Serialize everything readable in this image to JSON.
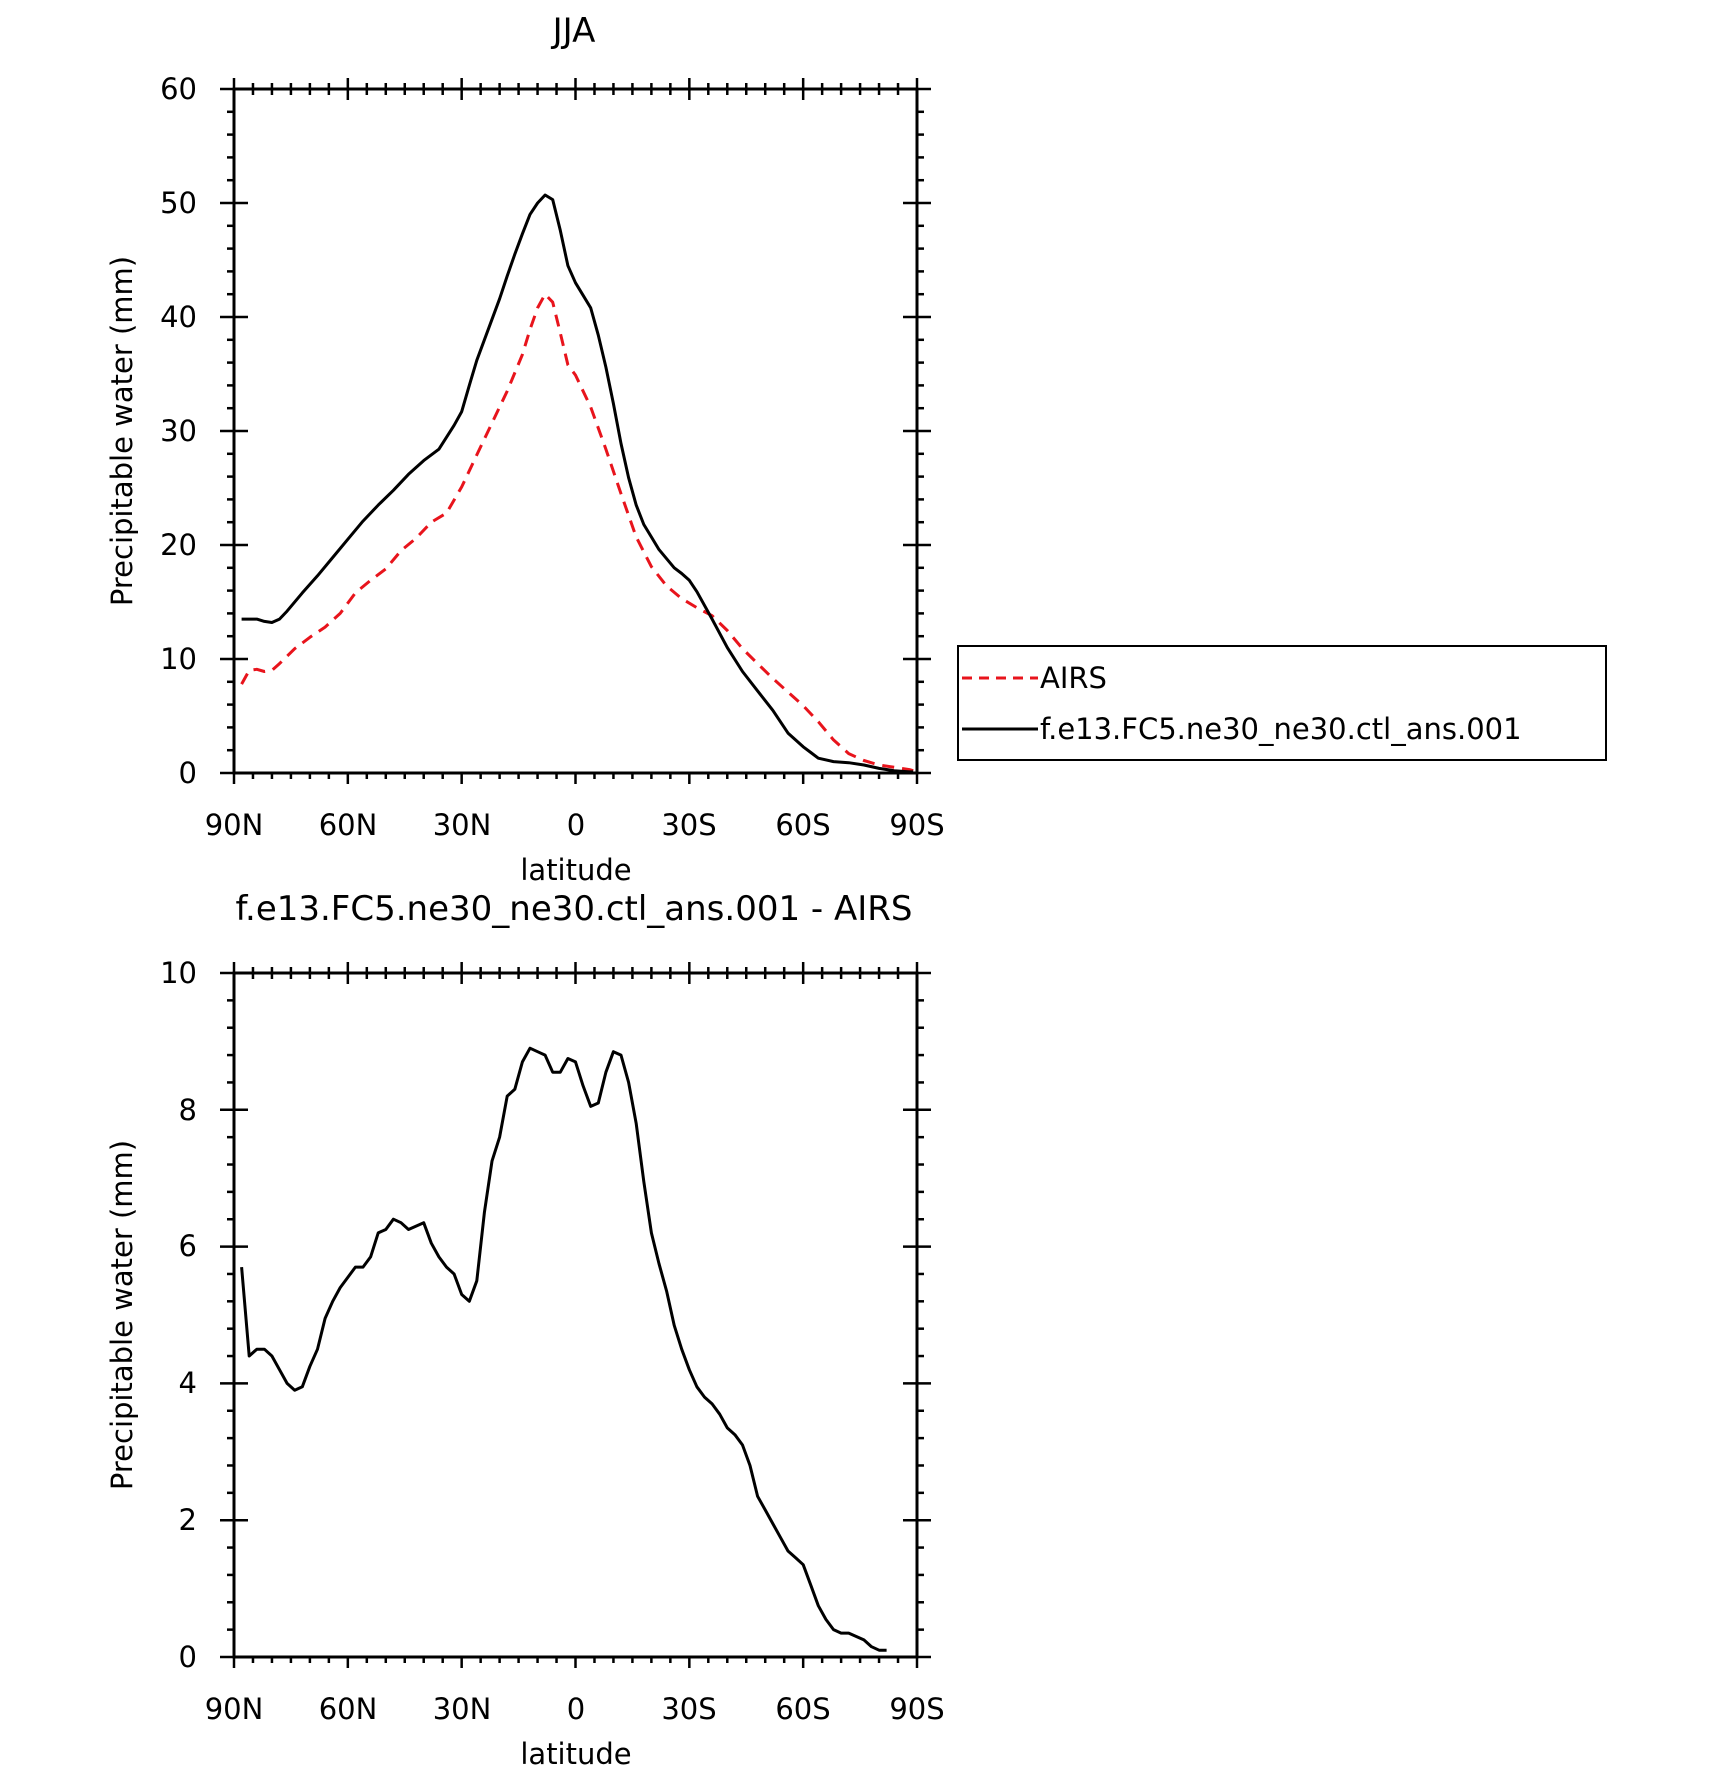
{
  "chart_data": [
    {
      "type": "line",
      "title": "JJA",
      "xlabel": "latitude",
      "ylabel": "Precipitable water (mm)",
      "xlim": [
        90,
        -90
      ],
      "ylim": [
        0,
        60
      ],
      "x_ticks": [
        90,
        60,
        30,
        0,
        -30,
        -60,
        -90
      ],
      "x_tick_labels": [
        "90N",
        "60N",
        "30N",
        "0",
        "30S",
        "60S",
        "90S"
      ],
      "y_ticks": [
        0,
        10,
        20,
        30,
        40,
        50,
        60
      ],
      "y_tick_labels": [
        "0",
        "10",
        "20",
        "30",
        "40",
        "50",
        "60"
      ],
      "grid": false,
      "legend": {
        "position": "right",
        "entries": [
          "AIRS",
          "f.e13.FC5.ne30_ne30.ctl_ans.001"
        ]
      },
      "series": [
        {
          "name": "AIRS",
          "color": "#e8141c",
          "dash": "dashed",
          "points": [
            [
              88,
              7.8
            ],
            [
              86,
              9.0
            ],
            [
              84,
              9.1
            ],
            [
              82,
              8.9
            ],
            [
              80,
              9.0
            ],
            [
              78,
              9.6
            ],
            [
              74,
              10.9
            ],
            [
              70,
              11.9
            ],
            [
              66,
              12.8
            ],
            [
              62,
              14.0
            ],
            [
              58,
              15.8
            ],
            [
              54,
              16.9
            ],
            [
              50,
              17.9
            ],
            [
              46,
              19.5
            ],
            [
              42,
              20.6
            ],
            [
              38,
              22.0
            ],
            [
              34,
              22.8
            ],
            [
              30,
              25.1
            ],
            [
              26,
              27.9
            ],
            [
              22,
              30.7
            ],
            [
              18,
              33.5
            ],
            [
              14,
              36.7
            ],
            [
              12,
              38.9
            ],
            [
              10,
              40.8
            ],
            [
              8,
              42.0
            ],
            [
              6,
              41.3
            ],
            [
              4,
              38.6
            ],
            [
              2,
              35.8
            ],
            [
              0,
              34.9
            ],
            [
              -4,
              32.1
            ],
            [
              -8,
              28.4
            ],
            [
              -12,
              24.5
            ],
            [
              -16,
              20.7
            ],
            [
              -20,
              18.1
            ],
            [
              -24,
              16.4
            ],
            [
              -28,
              15.3
            ],
            [
              -32,
              14.5
            ],
            [
              -36,
              13.8
            ],
            [
              -40,
              12.5
            ],
            [
              -44,
              10.9
            ],
            [
              -48,
              9.6
            ],
            [
              -52,
              8.3
            ],
            [
              -56,
              7.1
            ],
            [
              -60,
              5.9
            ],
            [
              -64,
              4.5
            ],
            [
              -68,
              2.9
            ],
            [
              -72,
              1.7
            ],
            [
              -76,
              1.1
            ],
            [
              -80,
              0.7
            ],
            [
              -84,
              0.5
            ],
            [
              -88,
              0.3
            ],
            [
              -89,
              0.2
            ]
          ]
        },
        {
          "name": "f.e13.FC5.ne30_ne30.ctl_ans.001",
          "color": "#000000",
          "dash": "solid",
          "points": [
            [
              88,
              13.5
            ],
            [
              86,
              13.5
            ],
            [
              84,
              13.5
            ],
            [
              82,
              13.3
            ],
            [
              80,
              13.2
            ],
            [
              78,
              13.5
            ],
            [
              76,
              14.2
            ],
            [
              72,
              15.8
            ],
            [
              68,
              17.3
            ],
            [
              64,
              18.9
            ],
            [
              60,
              20.5
            ],
            [
              56,
              22.1
            ],
            [
              52,
              23.5
            ],
            [
              48,
              24.8
            ],
            [
              44,
              26.2
            ],
            [
              40,
              27.4
            ],
            [
              36,
              28.4
            ],
            [
              32,
              30.5
            ],
            [
              30,
              31.7
            ],
            [
              28,
              34.0
            ],
            [
              26,
              36.2
            ],
            [
              24,
              38.0
            ],
            [
              20,
              41.6
            ],
            [
              18,
              43.6
            ],
            [
              16,
              45.5
            ],
            [
              14,
              47.3
            ],
            [
              12,
              49.0
            ],
            [
              10,
              50.0
            ],
            [
              8,
              50.7
            ],
            [
              6,
              50.3
            ],
            [
              4,
              47.6
            ],
            [
              2,
              44.5
            ],
            [
              0,
              43.0
            ],
            [
              -2,
              41.9
            ],
            [
              -4,
              40.8
            ],
            [
              -6,
              38.4
            ],
            [
              -8,
              35.6
            ],
            [
              -10,
              32.4
            ],
            [
              -12,
              28.9
            ],
            [
              -14,
              25.9
            ],
            [
              -16,
              23.5
            ],
            [
              -18,
              21.8
            ],
            [
              -20,
              20.7
            ],
            [
              -22,
              19.6
            ],
            [
              -24,
              18.8
            ],
            [
              -26,
              18.0
            ],
            [
              -28,
              17.5
            ],
            [
              -30,
              16.9
            ],
            [
              -32,
              15.9
            ],
            [
              -36,
              13.5
            ],
            [
              -40,
              11.0
            ],
            [
              -44,
              8.9
            ],
            [
              -48,
              7.2
            ],
            [
              -52,
              5.5
            ],
            [
              -56,
              3.5
            ],
            [
              -60,
              2.3
            ],
            [
              -62,
              1.8
            ],
            [
              -64,
              1.3
            ],
            [
              -68,
              1.0
            ],
            [
              -72,
              0.9
            ],
            [
              -76,
              0.7
            ],
            [
              -80,
              0.4
            ],
            [
              -84,
              0.2
            ],
            [
              -88,
              0.1
            ],
            [
              -89,
              0.1
            ]
          ]
        }
      ]
    },
    {
      "type": "line",
      "title": "f.e13.FC5.ne30_ne30.ctl_ans.001 - AIRS",
      "xlabel": "latitude",
      "ylabel": "Precipitable water (mm)",
      "xlim": [
        90,
        -90
      ],
      "ylim": [
        0,
        10
      ],
      "x_ticks": [
        90,
        60,
        30,
        0,
        -30,
        -60,
        -90
      ],
      "x_tick_labels": [
        "90N",
        "60N",
        "30N",
        "0",
        "30S",
        "60S",
        "90S"
      ],
      "y_ticks": [
        0,
        2,
        4,
        6,
        8,
        10
      ],
      "y_tick_labels": [
        "0",
        "2",
        "4",
        "6",
        "8",
        "10"
      ],
      "grid": false,
      "series": [
        {
          "color": "#000000",
          "dash": "solid",
          "points": [
            [
              88,
              5.7
            ],
            [
              86,
              4.4
            ],
            [
              84,
              4.5
            ],
            [
              82,
              4.5
            ],
            [
              80,
              4.4
            ],
            [
              78,
              4.2
            ],
            [
              76,
              4.0
            ],
            [
              74,
              3.9
            ],
            [
              72,
              3.95
            ],
            [
              70,
              4.25
            ],
            [
              68,
              4.5
            ],
            [
              66,
              4.95
            ],
            [
              64,
              5.2
            ],
            [
              62,
              5.4
            ],
            [
              60,
              5.55
            ],
            [
              58,
              5.7
            ],
            [
              56,
              5.7
            ],
            [
              54,
              5.85
            ],
            [
              52,
              6.2
            ],
            [
              50,
              6.25
            ],
            [
              48,
              6.4
            ],
            [
              46,
              6.35
            ],
            [
              44,
              6.25
            ],
            [
              42,
              6.3
            ],
            [
              40,
              6.35
            ],
            [
              38,
              6.05
            ],
            [
              36,
              5.85
            ],
            [
              34,
              5.7
            ],
            [
              32,
              5.6
            ],
            [
              30,
              5.3
            ],
            [
              28,
              5.2
            ],
            [
              26,
              5.5
            ],
            [
              24,
              6.5
            ],
            [
              22,
              7.25
            ],
            [
              20,
              7.6
            ],
            [
              18,
              8.2
            ],
            [
              16,
              8.3
            ],
            [
              14,
              8.7
            ],
            [
              12,
              8.9
            ],
            [
              10,
              8.85
            ],
            [
              8,
              8.8
            ],
            [
              6,
              8.55
            ],
            [
              4,
              8.55
            ],
            [
              2,
              8.75
            ],
            [
              0,
              8.7
            ],
            [
              -2,
              8.35
            ],
            [
              -4,
              8.05
            ],
            [
              -6,
              8.1
            ],
            [
              -8,
              8.55
            ],
            [
              -10,
              8.85
            ],
            [
              -12,
              8.8
            ],
            [
              -14,
              8.4
            ],
            [
              -16,
              7.8
            ],
            [
              -18,
              6.95
            ],
            [
              -20,
              6.2
            ],
            [
              -22,
              5.75
            ],
            [
              -24,
              5.35
            ],
            [
              -26,
              4.85
            ],
            [
              -28,
              4.5
            ],
            [
              -30,
              4.2
            ],
            [
              -32,
              3.95
            ],
            [
              -34,
              3.8
            ],
            [
              -36,
              3.7
            ],
            [
              -38,
              3.55
            ],
            [
              -40,
              3.35
            ],
            [
              -42,
              3.25
            ],
            [
              -44,
              3.1
            ],
            [
              -46,
              2.8
            ],
            [
              -48,
              2.35
            ],
            [
              -50,
              2.15
            ],
            [
              -52,
              1.95
            ],
            [
              -54,
              1.75
            ],
            [
              -56,
              1.55
            ],
            [
              -58,
              1.45
            ],
            [
              -60,
              1.35
            ],
            [
              -62,
              1.05
            ],
            [
              -64,
              0.75
            ],
            [
              -66,
              0.55
            ],
            [
              -68,
              0.4
            ],
            [
              -70,
              0.35
            ],
            [
              -72,
              0.35
            ],
            [
              -74,
              0.3
            ],
            [
              -76,
              0.25
            ],
            [
              -78,
              0.15
            ],
            [
              -80,
              0.1
            ],
            [
              -82,
              0.1
            ]
          ]
        }
      ]
    }
  ]
}
